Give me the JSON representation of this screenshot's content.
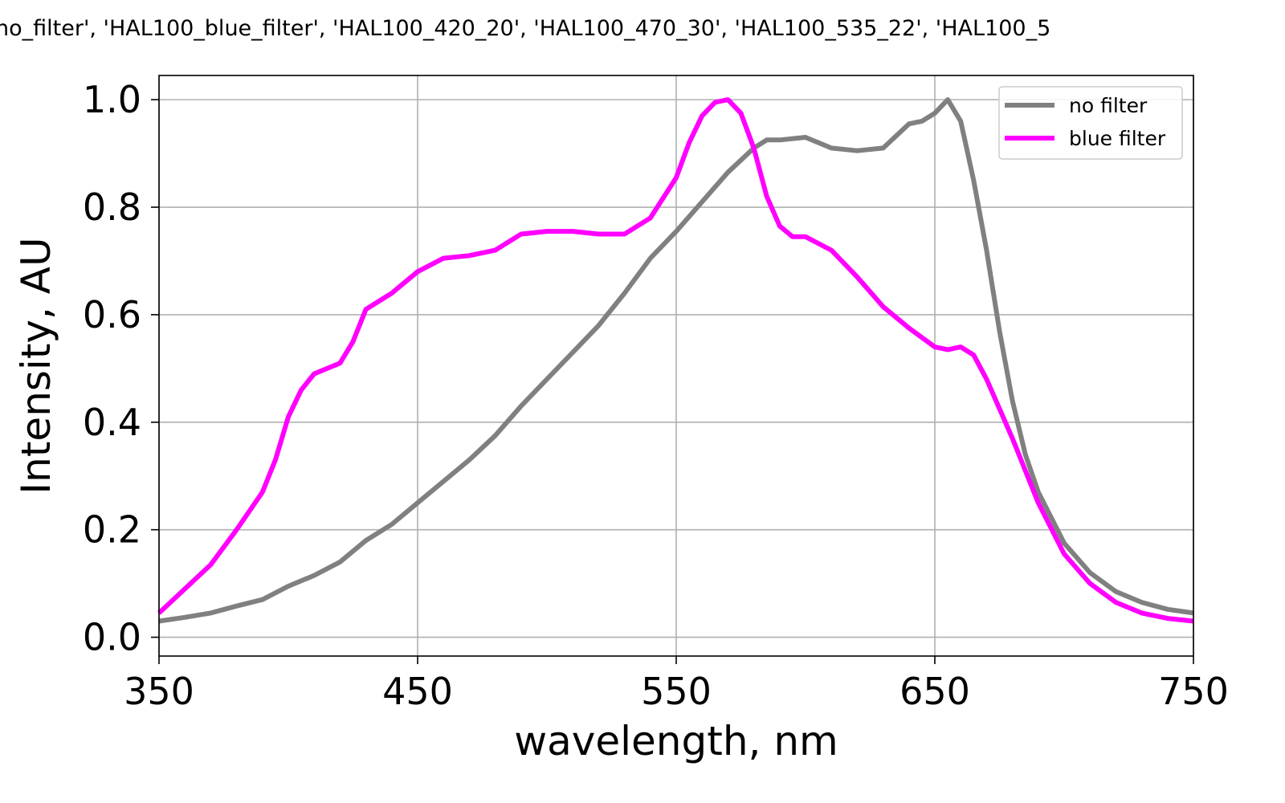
{
  "chart_data": {
    "type": "line",
    "title": "no_filter', 'HAL100_blue_filter', 'HAL100_420_20', 'HAL100_470_30', 'HAL100_535_22', 'HAL100_5",
    "xlabel": "wavelength, nm",
    "ylabel": "Intensity, AU",
    "xlim": [
      350,
      750
    ],
    "ylim": [
      -0.035,
      1.045
    ],
    "xticks": [
      350,
      450,
      550,
      650,
      750
    ],
    "xtick_labels": [
      "350",
      "450",
      "550",
      "650",
      "750"
    ],
    "yticks": [
      0.0,
      0.2,
      0.4,
      0.6,
      0.8,
      1.0
    ],
    "ytick_labels": [
      "0.0",
      "0.2",
      "0.4",
      "0.6",
      "0.8",
      "1.0"
    ],
    "grid": true,
    "legend_position": "top-right",
    "series": [
      {
        "name": "no filter",
        "color": "#808080",
        "x": [
          350,
          360,
          370,
          380,
          390,
          400,
          410,
          420,
          430,
          440,
          450,
          460,
          470,
          480,
          490,
          500,
          510,
          520,
          530,
          540,
          550,
          560,
          570,
          580,
          585,
          590,
          600,
          610,
          620,
          630,
          640,
          645,
          650,
          655,
          660,
          665,
          670,
          675,
          680,
          685,
          690,
          700,
          710,
          720,
          730,
          740,
          750
        ],
        "y": [
          0.03,
          0.037,
          0.045,
          0.058,
          0.07,
          0.095,
          0.115,
          0.14,
          0.18,
          0.21,
          0.25,
          0.29,
          0.33,
          0.375,
          0.43,
          0.48,
          0.53,
          0.58,
          0.64,
          0.705,
          0.755,
          0.81,
          0.865,
          0.91,
          0.925,
          0.925,
          0.93,
          0.91,
          0.905,
          0.91,
          0.955,
          0.96,
          0.975,
          1.0,
          0.96,
          0.85,
          0.72,
          0.57,
          0.44,
          0.34,
          0.27,
          0.175,
          0.12,
          0.085,
          0.065,
          0.052,
          0.045
        ]
      },
      {
        "name": "blue filter",
        "color": "#ff00ff",
        "x": [
          350,
          360,
          370,
          380,
          390,
          395,
          400,
          405,
          410,
          420,
          425,
          430,
          440,
          450,
          460,
          470,
          480,
          490,
          500,
          510,
          520,
          530,
          540,
          550,
          555,
          560,
          565,
          570,
          575,
          580,
          585,
          590,
          595,
          600,
          610,
          620,
          630,
          640,
          650,
          655,
          660,
          665,
          670,
          680,
          690,
          700,
          710,
          720,
          730,
          740,
          750
        ],
        "y": [
          0.045,
          0.09,
          0.135,
          0.2,
          0.27,
          0.33,
          0.41,
          0.46,
          0.49,
          0.51,
          0.55,
          0.61,
          0.64,
          0.68,
          0.705,
          0.71,
          0.72,
          0.75,
          0.755,
          0.755,
          0.75,
          0.75,
          0.78,
          0.855,
          0.92,
          0.97,
          0.995,
          1.0,
          0.975,
          0.91,
          0.82,
          0.765,
          0.745,
          0.745,
          0.72,
          0.67,
          0.615,
          0.575,
          0.54,
          0.535,
          0.54,
          0.525,
          0.48,
          0.37,
          0.25,
          0.155,
          0.1,
          0.065,
          0.045,
          0.035,
          0.03
        ]
      }
    ]
  }
}
